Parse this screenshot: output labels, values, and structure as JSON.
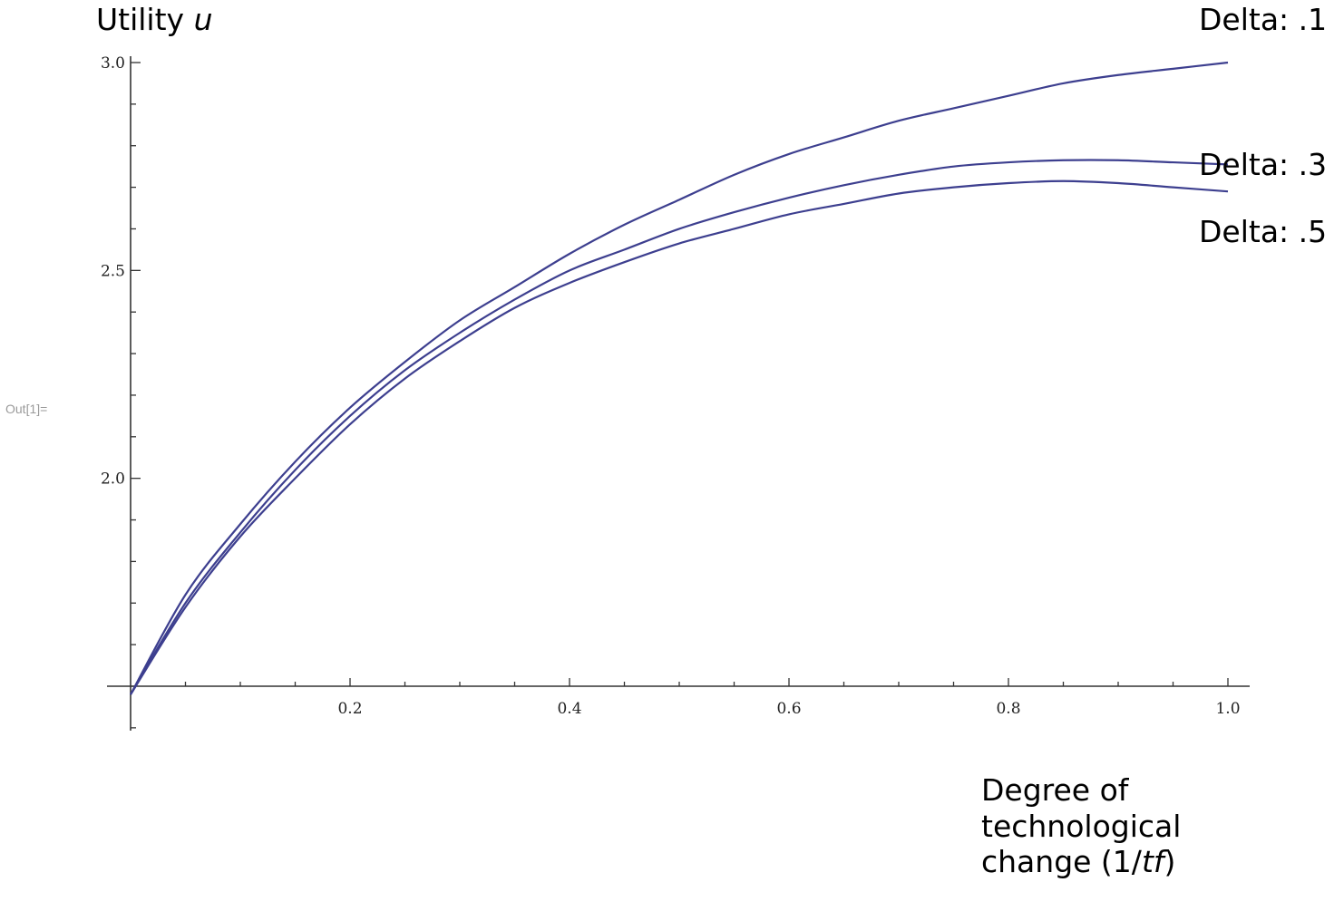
{
  "output_label": "Out[1]=",
  "annotations": {
    "ylabel_prefix": "Utility ",
    "ylabel_var": "u",
    "xlabel_line1": "Degree of",
    "xlabel_line2": "technological",
    "xlabel_line3_prefix": "change (1/",
    "xlabel_line3_var": "tf",
    "xlabel_line3_suffix": ")",
    "delta_1": "Delta: .1",
    "delta_3": "Delta: .3",
    "delta_5": "Delta: .5"
  },
  "chart_data": {
    "type": "line",
    "title": "",
    "xlabel": "Degree of technological change (1/tf)",
    "ylabel": "Utility u",
    "xlim": [
      0,
      1.0
    ],
    "ylim": [
      1.5,
      3.0
    ],
    "axis_origin": [
      0,
      1.5
    ],
    "x_ticks": [
      0.2,
      0.4,
      0.6,
      0.8,
      1.0
    ],
    "x_tick_labels": [
      "0.2",
      "0.4",
      "0.6",
      "0.8",
      "1.0"
    ],
    "y_ticks": [
      2.0,
      2.5,
      3.0
    ],
    "y_tick_labels": [
      "2.0",
      "2.5",
      "3.0"
    ],
    "grid": false,
    "line_color": "#3d3f8f",
    "x": [
      0,
      0.05,
      0.1,
      0.15,
      0.2,
      0.25,
      0.3,
      0.35,
      0.4,
      0.45,
      0.5,
      0.55,
      0.6,
      0.65,
      0.7,
      0.75,
      0.8,
      0.85,
      0.9,
      0.95,
      1.0
    ],
    "series": [
      {
        "name": "Delta: .1",
        "values": [
          1.48,
          1.72,
          1.89,
          2.04,
          2.17,
          2.28,
          2.38,
          2.46,
          2.54,
          2.61,
          2.67,
          2.73,
          2.78,
          2.82,
          2.86,
          2.89,
          2.92,
          2.95,
          2.97,
          2.985,
          3.0
        ]
      },
      {
        "name": "Delta: .3",
        "values": [
          1.48,
          1.7,
          1.87,
          2.02,
          2.15,
          2.26,
          2.35,
          2.43,
          2.5,
          2.55,
          2.6,
          2.64,
          2.675,
          2.705,
          2.73,
          2.75,
          2.76,
          2.765,
          2.765,
          2.76,
          2.755
        ]
      },
      {
        "name": "Delta: .5",
        "values": [
          1.48,
          1.69,
          1.86,
          2.0,
          2.13,
          2.24,
          2.33,
          2.41,
          2.47,
          2.52,
          2.565,
          2.6,
          2.635,
          2.66,
          2.685,
          2.7,
          2.71,
          2.715,
          2.71,
          2.7,
          2.69
        ]
      }
    ]
  }
}
